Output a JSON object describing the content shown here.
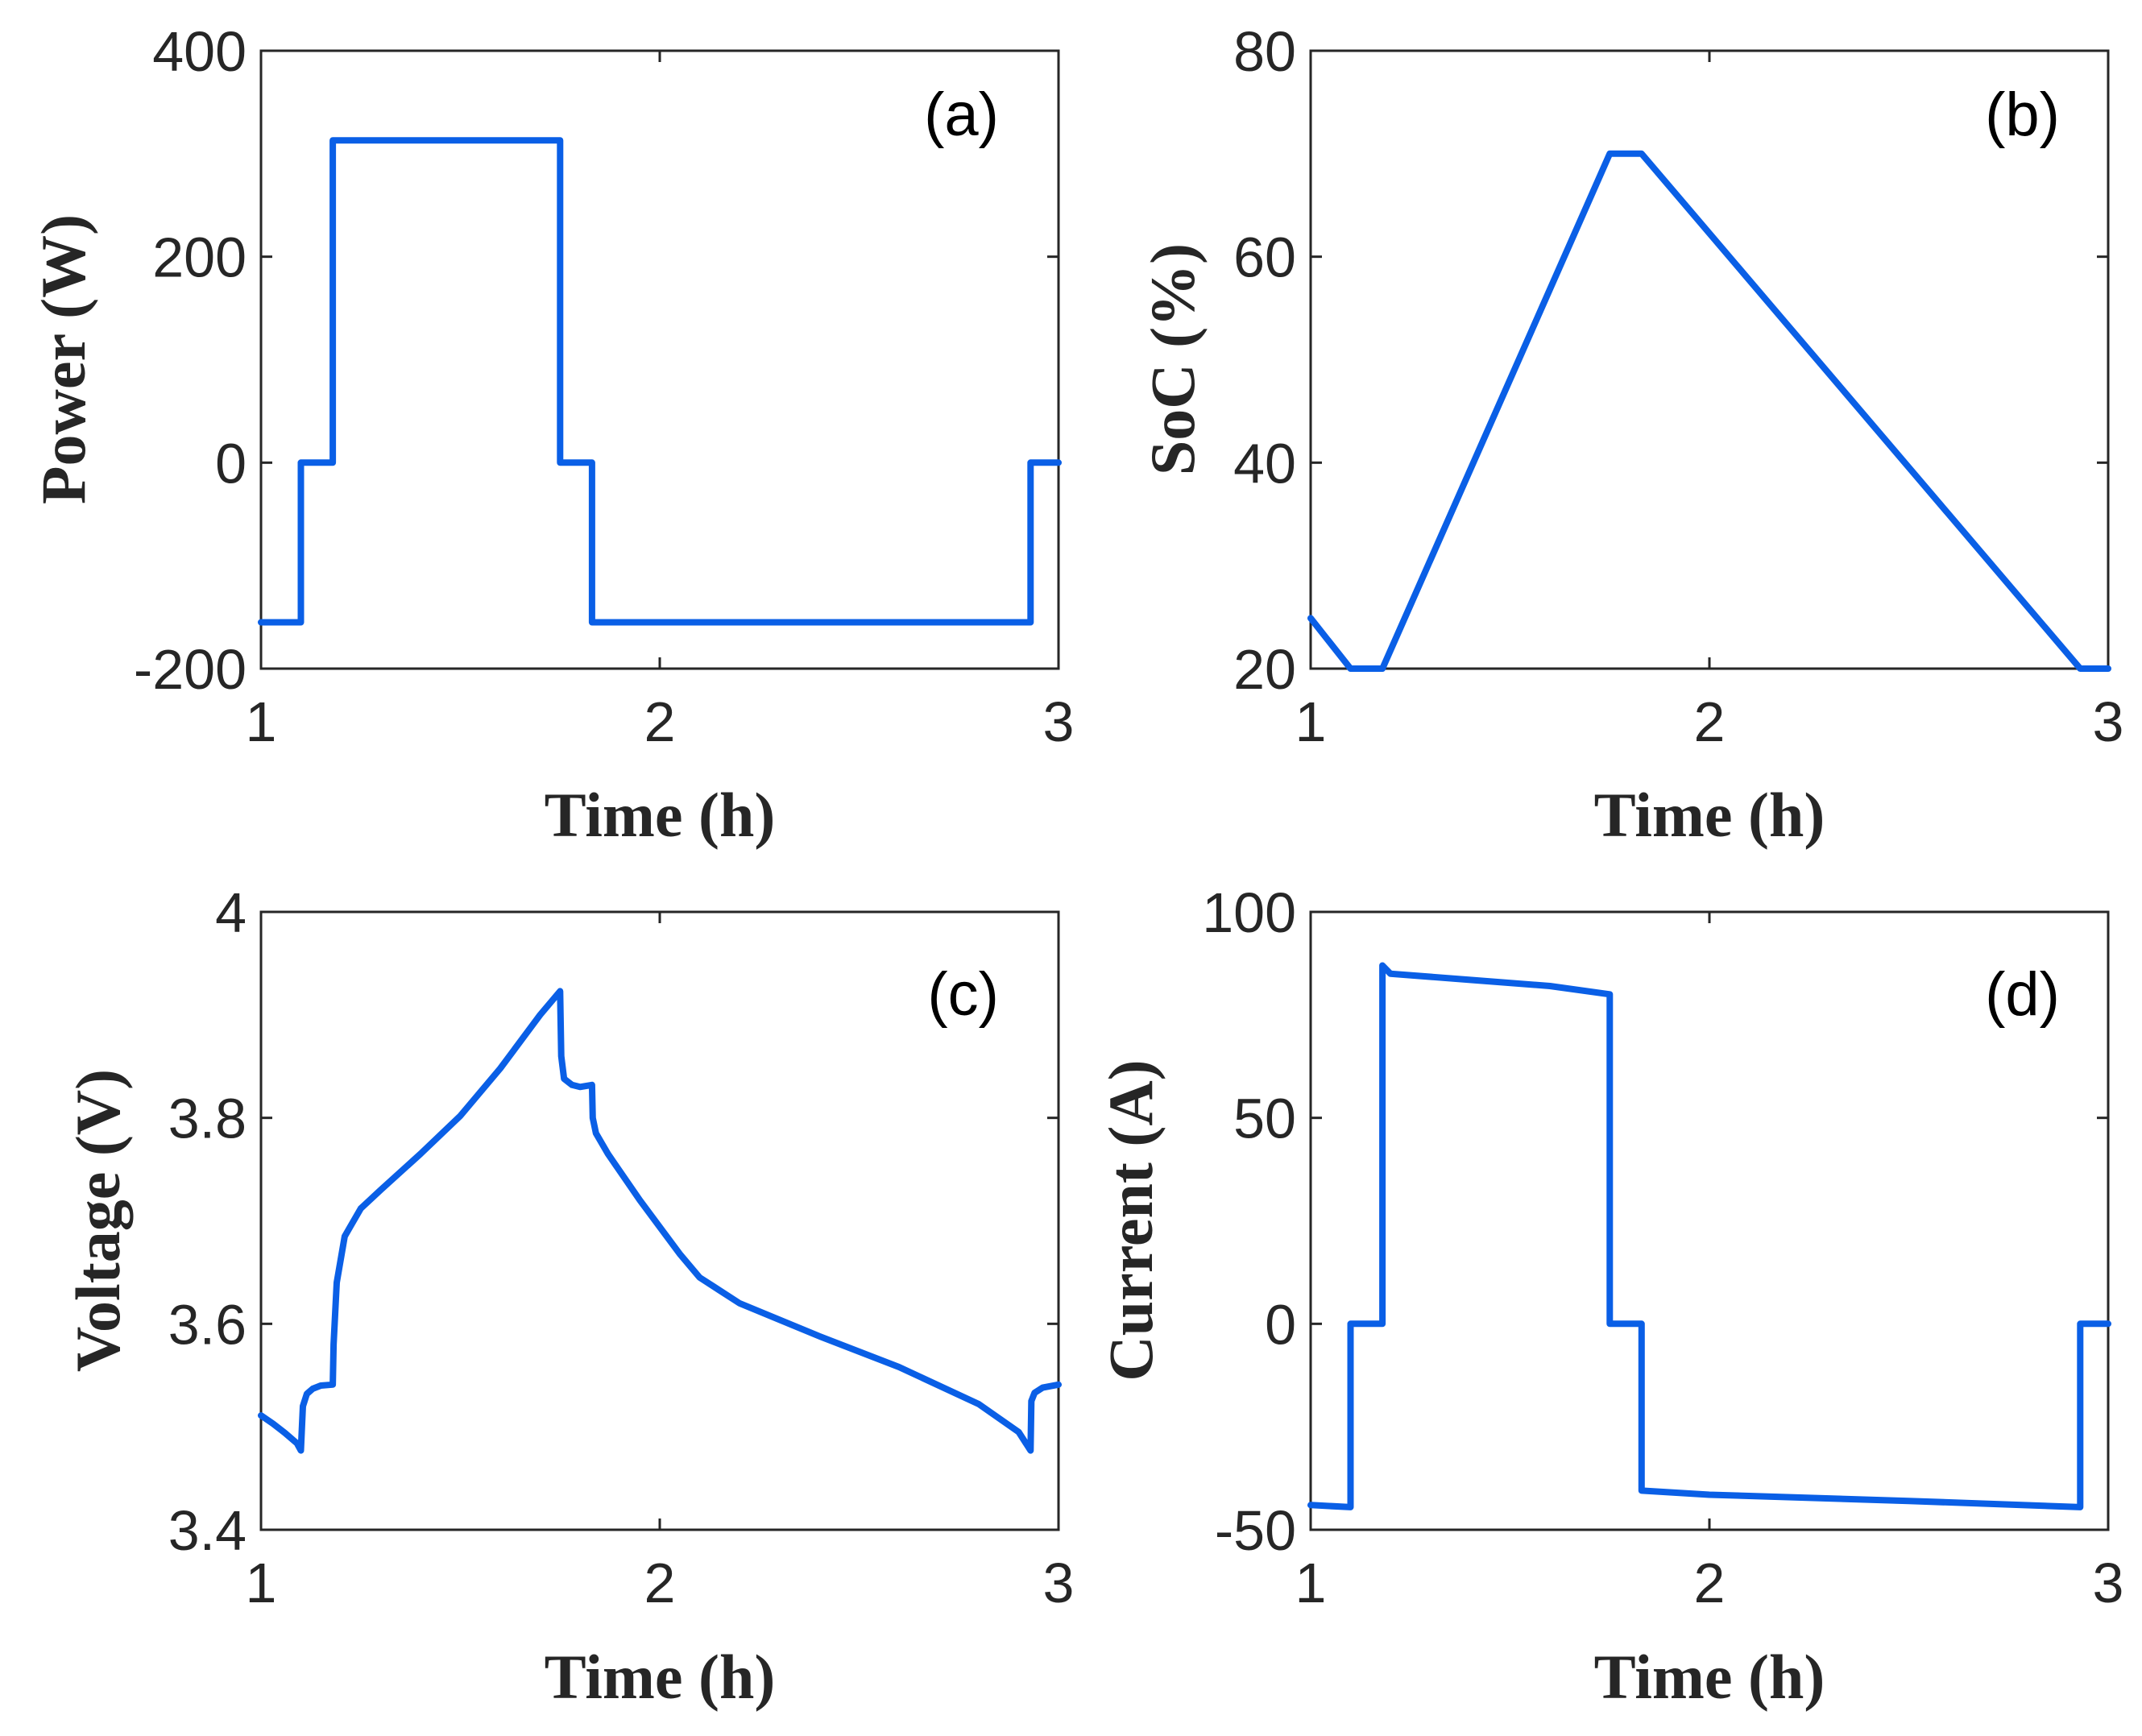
{
  "figure": {
    "line_color": "#0a5fe6",
    "axis_color": "#262626"
  },
  "chart_data": [
    {
      "id": "a",
      "type": "line",
      "tag": "(a)",
      "xlabel": "Time (h)",
      "ylabel": "Power (W)",
      "xlim": [
        1,
        3
      ],
      "ylim": [
        -200,
        400
      ],
      "xticks": [
        1,
        2,
        3
      ],
      "xtick_labels": [
        "1",
        "2",
        "3"
      ],
      "yticks": [
        -200,
        0,
        200,
        400
      ],
      "ytick_labels": [
        "-200",
        "0",
        "200",
        "400"
      ],
      "series": [
        {
          "name": "Power",
          "x": [
            1.0,
            1.1,
            1.1,
            1.18,
            1.18,
            1.75,
            1.75,
            1.83,
            1.83,
            2.93,
            2.93,
            3.0
          ],
          "y": [
            -155,
            -155,
            0,
            0,
            313,
            313,
            0,
            0,
            -155,
            -155,
            0,
            0
          ]
        }
      ]
    },
    {
      "id": "b",
      "type": "line",
      "tag": "(b)",
      "xlabel": "Time (h)",
      "ylabel": "SoC (%)",
      "xlim": [
        1,
        3
      ],
      "ylim": [
        20,
        80
      ],
      "xticks": [
        1,
        2,
        3
      ],
      "xtick_labels": [
        "1",
        "2",
        "3"
      ],
      "yticks": [
        20,
        40,
        60,
        80
      ],
      "ytick_labels": [
        "20",
        "40",
        "60",
        "80"
      ],
      "series": [
        {
          "name": "SoC",
          "x": [
            1.0,
            1.1,
            1.18,
            1.75,
            1.83,
            2.93,
            3.0
          ],
          "y": [
            24.9,
            20.0,
            20.0,
            70.0,
            70.0,
            20.0,
            20.0
          ]
        }
      ]
    },
    {
      "id": "c",
      "type": "line",
      "tag": "(c)",
      "xlabel": "Time (h)",
      "ylabel": "Voltage (V)",
      "xlim": [
        1,
        3
      ],
      "ylim": [
        3.4,
        4.0
      ],
      "xticks": [
        1,
        2,
        3
      ],
      "xtick_labels": [
        "1",
        "2",
        "3"
      ],
      "yticks": [
        3.4,
        3.6,
        3.8,
        4.0
      ],
      "ytick_labels": [
        "3.4",
        "3.6",
        "3.8",
        "4"
      ],
      "series": [
        {
          "name": "Voltage",
          "x": [
            1.0,
            1.03,
            1.06,
            1.09,
            1.1,
            1.105,
            1.115,
            1.13,
            1.15,
            1.18,
            1.182,
            1.19,
            1.21,
            1.25,
            1.3,
            1.4,
            1.5,
            1.6,
            1.7,
            1.75,
            1.753,
            1.76,
            1.78,
            1.8,
            1.83,
            1.832,
            1.84,
            1.87,
            1.95,
            2.05,
            2.1,
            2.2,
            2.4,
            2.6,
            2.8,
            2.9,
            2.93,
            2.932,
            2.94,
            2.96,
            3.0
          ],
          "y": [
            3.511,
            3.503,
            3.494,
            3.484,
            3.477,
            3.52,
            3.532,
            3.537,
            3.54,
            3.541,
            3.58,
            3.64,
            3.685,
            3.712,
            3.73,
            3.765,
            3.802,
            3.848,
            3.9,
            3.923,
            3.86,
            3.838,
            3.832,
            3.83,
            3.832,
            3.8,
            3.785,
            3.765,
            3.72,
            3.668,
            3.645,
            3.62,
            3.588,
            3.558,
            3.522,
            3.495,
            3.477,
            3.525,
            3.533,
            3.538,
            3.541
          ]
        }
      ]
    },
    {
      "id": "d",
      "type": "line",
      "tag": "(d)",
      "xlabel": "Time (h)",
      "ylabel": "Current (A)",
      "xlim": [
        1,
        3
      ],
      "ylim": [
        -50,
        100
      ],
      "xticks": [
        1,
        2,
        3
      ],
      "xtick_labels": [
        "1",
        "2",
        "3"
      ],
      "yticks": [
        -50,
        0,
        50,
        100
      ],
      "ytick_labels": [
        "-50",
        "0",
        "50",
        "100"
      ],
      "series": [
        {
          "name": "Current",
          "x": [
            1.0,
            1.1,
            1.1,
            1.18,
            1.18,
            1.2,
            1.4,
            1.6,
            1.75,
            1.75,
            1.83,
            1.83,
            2.0,
            2.5,
            2.93,
            2.93,
            3.0
          ],
          "y": [
            -44,
            -44.5,
            0,
            0,
            87,
            85,
            83.5,
            82,
            80,
            0,
            0,
            -40.5,
            -41.5,
            -43,
            -44.5,
            0,
            0
          ]
        }
      ]
    }
  ]
}
